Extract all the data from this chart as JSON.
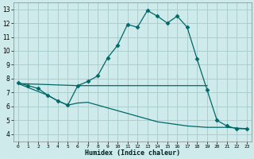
{
  "xlabel": "Humidex (Indice chaleur)",
  "bg_color": "#ceeaea",
  "grid_color": "#aacece",
  "line_color": "#006868",
  "xlim": [
    -0.5,
    23.5
  ],
  "ylim": [
    3.5,
    13.5
  ],
  "xticks": [
    0,
    1,
    2,
    3,
    4,
    5,
    6,
    7,
    8,
    9,
    10,
    11,
    12,
    13,
    14,
    15,
    16,
    17,
    18,
    19,
    20,
    21,
    22,
    23
  ],
  "yticks": [
    4,
    5,
    6,
    7,
    8,
    9,
    10,
    11,
    12,
    13
  ],
  "curve1_x": [
    0,
    1,
    2,
    3,
    4,
    5,
    6,
    7,
    8,
    9,
    10,
    11,
    12,
    13,
    14,
    15,
    16,
    17,
    18,
    19,
    20,
    21,
    22,
    23
  ],
  "curve1_y": [
    7.7,
    7.5,
    7.3,
    6.8,
    6.4,
    6.1,
    7.5,
    7.8,
    8.2,
    9.5,
    10.4,
    11.9,
    11.7,
    12.9,
    12.5,
    12.0,
    12.5,
    11.7,
    9.4,
    7.2,
    5.0,
    4.6,
    4.4,
    4.4
  ],
  "curve2_x": [
    0,
    6,
    19
  ],
  "curve2_y": [
    7.65,
    7.5,
    7.5
  ],
  "curve3_x": [
    0,
    3,
    4,
    5,
    6,
    7,
    8,
    9,
    10,
    11,
    12,
    13,
    14,
    15,
    16,
    17,
    18,
    19,
    20,
    21,
    22,
    23
  ],
  "curve3_y": [
    7.65,
    6.8,
    6.4,
    6.1,
    6.25,
    6.3,
    6.1,
    5.9,
    5.7,
    5.5,
    5.3,
    5.1,
    4.9,
    4.8,
    4.7,
    4.6,
    4.55,
    4.5,
    4.5,
    4.5,
    4.45,
    4.4
  ]
}
